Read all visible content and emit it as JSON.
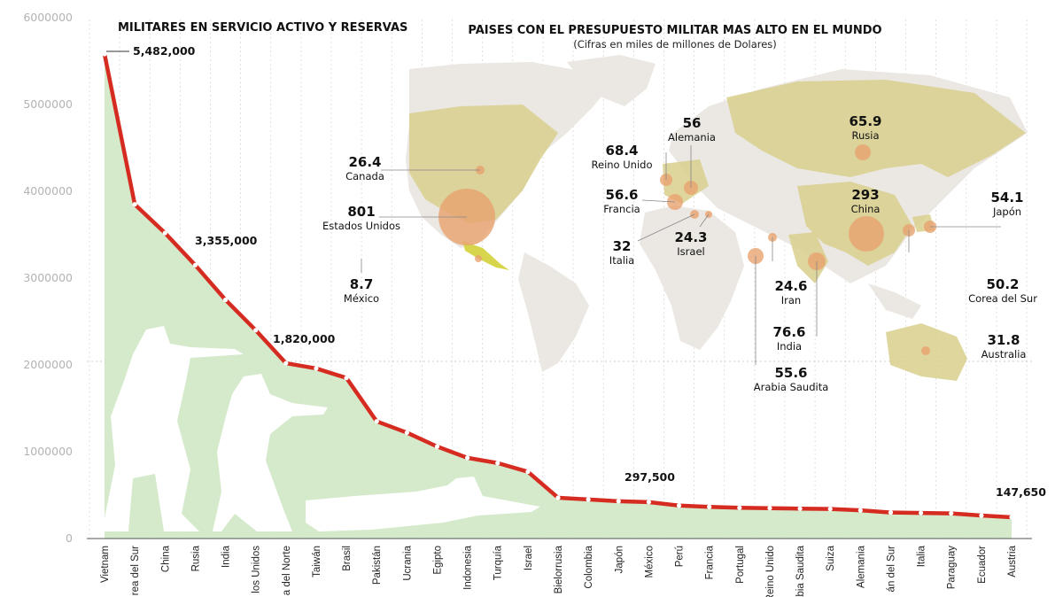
{
  "chart_data": [
    {
      "type": "area",
      "title": "MILITARES EN SERVICIO ACTIVO Y RESERVAS",
      "categories": [
        "Vietnam",
        "Corea del Sur",
        "China",
        "Rusia",
        "India",
        "Estados Unidos",
        "Corea del Norte",
        "Taiwán",
        "Brasil",
        "Pakistán",
        "Ucrania",
        "Egipto",
        "Indonesia",
        "Turquía",
        "Israel",
        "Bielorrusia",
        "Colombia",
        "Japón",
        "México",
        "Perú",
        "Francia",
        "Portugal",
        "Reino Unido",
        "Arabia Saudita",
        "Suiza",
        "Alemania",
        "Irán del Sur",
        "Italia",
        "Paraguay",
        "Ecuador",
        "Austria"
      ],
      "category_labels": [
        "Vietnam",
        "rea del Sur",
        "China",
        "Rusia",
        "India",
        "los Unidos",
        "a del Norte",
        "Taiwán",
        "Brasil",
        "Pakistán",
        "Ucrania",
        "Egipto",
        "Indonesia",
        "Turquía",
        "Israel",
        "Bielorrusia",
        "Colombia",
        "Japón",
        "México",
        "Perú",
        "Francia",
        "Portugal",
        "Reino Unido",
        "Arabia Saudita",
        "Suiza",
        "Alemania",
        "án del Sur",
        "Italia",
        "Paraguay",
        "Ecuador",
        "Austria"
      ],
      "values": [
        5582000,
        3850000,
        3520000,
        3150000,
        2750000,
        2400000,
        2020000,
        1960000,
        1850000,
        1350000,
        1220000,
        1060000,
        930000,
        870000,
        770000,
        470000,
        450000,
        430000,
        420000,
        380000,
        365000,
        355000,
        350000,
        345000,
        340000,
        325000,
        300000,
        295000,
        290000,
        265000,
        245000
      ],
      "ylim": [
        0,
        6000000
      ],
      "yticks": [
        "0",
        "1000000",
        "2000000",
        "3000000",
        "4000000",
        "5000000",
        "6000000"
      ],
      "annotations": [
        {
          "text": "5,482,000",
          "category_index": 0
        },
        {
          "text": "3,355,000",
          "category_index": 3
        },
        {
          "text": "1,820,000",
          "category_index": 6
        },
        {
          "text": "297,500",
          "category_index": 18
        },
        {
          "text": "147,650",
          "category_index": 30
        }
      ],
      "colors": {
        "area": "#cfe8c4",
        "line": "#d62b20",
        "dash": "#ffffff"
      }
    },
    {
      "type": "scatter",
      "title": "PAISES CON EL PRESUPUESTO MILITAR MAS ALTO EN EL MUNDO",
      "subtitle": "(Cifras en miles de millones de Dolares)",
      "countries": [
        {
          "name": "Canada",
          "value": "26.4"
        },
        {
          "name": "Estados Unidos",
          "value": "801"
        },
        {
          "name": "México",
          "value": "8.7"
        },
        {
          "name": "Reino Unido",
          "value": "68.4"
        },
        {
          "name": "Alemania",
          "value": "56"
        },
        {
          "name": "Francia",
          "value": "56.6"
        },
        {
          "name": "Italia",
          "value": "32"
        },
        {
          "name": "Israel",
          "value": "24.3"
        },
        {
          "name": "Rusia",
          "value": "65.9"
        },
        {
          "name": "China",
          "value": "293"
        },
        {
          "name": "Japón",
          "value": "54.1"
        },
        {
          "name": "Corea del Sur",
          "value": "50.2"
        },
        {
          "name": "Iran",
          "value": "24.6"
        },
        {
          "name": "India",
          "value": "76.6"
        },
        {
          "name": "Arabia Saudita",
          "value": "55.6"
        },
        {
          "name": "Australia",
          "value": "31.8"
        }
      ],
      "colors": {
        "land": "#ebe7e2",
        "highlight": "#d8cf8c",
        "bubble": "#e8a26f",
        "mexico": "#d7d54b"
      }
    }
  ]
}
